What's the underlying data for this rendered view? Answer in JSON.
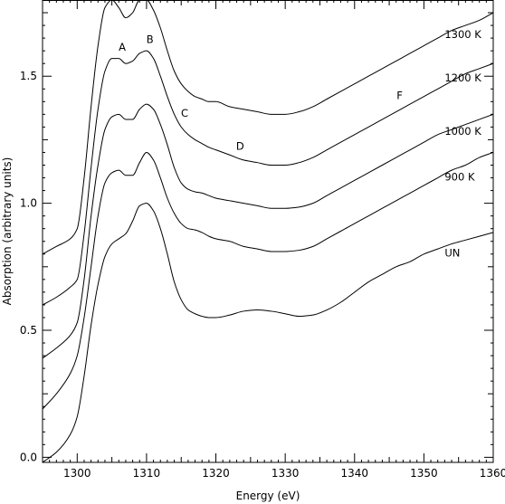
{
  "chart_data": {
    "type": "line",
    "title": "",
    "xlabel": "Energy (eV)",
    "ylabel": "Absorption (arbitrary units)",
    "xlim": [
      1295,
      1360
    ],
    "ylim": [
      -0.02,
      1.8
    ],
    "grid": false,
    "legend": "none",
    "x_major_ticks": [
      1300,
      1310,
      1320,
      1330,
      1340,
      1350,
      1360
    ],
    "x_tick_labels": [
      "1300",
      "1310",
      "1320",
      "1330",
      "1340",
      "1350",
      "1360"
    ],
    "y_major_ticks": [
      0.0,
      0.5,
      1.0,
      1.5
    ],
    "y_tick_labels": [
      "0.0",
      "0.5",
      "1.0",
      "1.5"
    ],
    "series": [
      {
        "name": "UN",
        "x": [
          1295,
          1297,
          1299,
          1300,
          1301,
          1302,
          1303,
          1304,
          1305,
          1306,
          1307,
          1308,
          1309,
          1310,
          1311,
          1312,
          1313,
          1314,
          1315,
          1316,
          1317,
          1318,
          1319,
          1320,
          1322,
          1324,
          1326,
          1328,
          1330,
          1332,
          1334,
          1336,
          1338,
          1340,
          1342,
          1344,
          1346,
          1348,
          1350,
          1352,
          1354,
          1356,
          1358,
          1360
        ],
        "y": [
          -0.02,
          0.02,
          0.09,
          0.16,
          0.32,
          0.52,
          0.68,
          0.79,
          0.84,
          0.86,
          0.88,
          0.93,
          0.99,
          1.0,
          0.97,
          0.9,
          0.8,
          0.69,
          0.62,
          0.58,
          0.565,
          0.555,
          0.55,
          0.55,
          0.56,
          0.575,
          0.58,
          0.575,
          0.565,
          0.555,
          0.56,
          0.58,
          0.61,
          0.65,
          0.69,
          0.72,
          0.75,
          0.77,
          0.8,
          0.82,
          0.84,
          0.855,
          0.87,
          0.885
        ]
      },
      {
        "name": "900 K",
        "x": [
          1295,
          1297,
          1299,
          1300,
          1301,
          1302,
          1303,
          1304,
          1305,
          1306,
          1307,
          1308,
          1309,
          1310,
          1311,
          1312,
          1313,
          1314,
          1315,
          1316,
          1317,
          1318,
          1319,
          1320,
          1322,
          1324,
          1326,
          1328,
          1330,
          1332,
          1334,
          1336,
          1338,
          1340,
          1342,
          1344,
          1346,
          1348,
          1350,
          1352,
          1354,
          1356,
          1358,
          1360
        ],
        "y": [
          0.19,
          0.25,
          0.33,
          0.4,
          0.55,
          0.75,
          0.95,
          1.08,
          1.12,
          1.13,
          1.11,
          1.11,
          1.16,
          1.2,
          1.17,
          1.1,
          1.02,
          0.96,
          0.92,
          0.9,
          0.895,
          0.885,
          0.87,
          0.86,
          0.85,
          0.83,
          0.82,
          0.81,
          0.81,
          0.815,
          0.83,
          0.86,
          0.89,
          0.92,
          0.95,
          0.98,
          1.01,
          1.04,
          1.07,
          1.1,
          1.13,
          1.15,
          1.18,
          1.2
        ]
      },
      {
        "name": "1000 K",
        "x": [
          1295,
          1297,
          1299,
          1300,
          1301,
          1302,
          1303,
          1304,
          1305,
          1306,
          1307,
          1308,
          1309,
          1310,
          1311,
          1312,
          1313,
          1314,
          1315,
          1316,
          1317,
          1318,
          1319,
          1320,
          1322,
          1324,
          1326,
          1328,
          1330,
          1332,
          1334,
          1336,
          1338,
          1340,
          1342,
          1344,
          1346,
          1348,
          1350,
          1352,
          1354,
          1356,
          1358,
          1360
        ],
        "y": [
          0.39,
          0.43,
          0.48,
          0.53,
          0.7,
          0.95,
          1.15,
          1.29,
          1.34,
          1.35,
          1.33,
          1.33,
          1.37,
          1.39,
          1.37,
          1.31,
          1.23,
          1.14,
          1.08,
          1.055,
          1.045,
          1.04,
          1.03,
          1.02,
          1.01,
          1.0,
          0.99,
          0.98,
          0.98,
          0.985,
          1.0,
          1.03,
          1.06,
          1.09,
          1.12,
          1.15,
          1.18,
          1.21,
          1.24,
          1.27,
          1.29,
          1.31,
          1.33,
          1.35
        ]
      },
      {
        "name": "1200 K",
        "x": [
          1295,
          1297,
          1299,
          1300,
          1301,
          1302,
          1303,
          1304,
          1305,
          1306,
          1307,
          1308,
          1309,
          1310,
          1311,
          1312,
          1313,
          1314,
          1315,
          1316,
          1317,
          1318,
          1319,
          1320,
          1322,
          1324,
          1326,
          1328,
          1330,
          1332,
          1334,
          1336,
          1338,
          1340,
          1342,
          1344,
          1346,
          1348,
          1350,
          1352,
          1354,
          1356,
          1358,
          1360
        ],
        "y": [
          0.6,
          0.63,
          0.67,
          0.7,
          0.88,
          1.14,
          1.37,
          1.52,
          1.57,
          1.57,
          1.55,
          1.56,
          1.59,
          1.6,
          1.57,
          1.5,
          1.42,
          1.35,
          1.3,
          1.27,
          1.25,
          1.235,
          1.22,
          1.21,
          1.19,
          1.17,
          1.16,
          1.15,
          1.15,
          1.16,
          1.18,
          1.21,
          1.24,
          1.27,
          1.3,
          1.33,
          1.36,
          1.39,
          1.42,
          1.45,
          1.48,
          1.51,
          1.53,
          1.55
        ]
      },
      {
        "name": "1300 K",
        "x": [
          1295,
          1297,
          1299,
          1300,
          1301,
          1302,
          1303,
          1304,
          1305,
          1306,
          1307,
          1308,
          1309,
          1310,
          1311,
          1312,
          1313,
          1314,
          1315,
          1316,
          1317,
          1318,
          1319,
          1320,
          1322,
          1324,
          1326,
          1328,
          1330,
          1332,
          1334,
          1336,
          1338,
          1340,
          1342,
          1344,
          1346,
          1348,
          1350,
          1352,
          1354,
          1356,
          1358,
          1360
        ],
        "y": [
          0.8,
          0.83,
          0.86,
          0.9,
          1.1,
          1.38,
          1.62,
          1.77,
          1.8,
          1.77,
          1.73,
          1.75,
          1.8,
          1.8,
          1.76,
          1.69,
          1.6,
          1.52,
          1.47,
          1.44,
          1.42,
          1.41,
          1.4,
          1.4,
          1.38,
          1.37,
          1.36,
          1.35,
          1.35,
          1.36,
          1.38,
          1.41,
          1.44,
          1.47,
          1.5,
          1.53,
          1.56,
          1.59,
          1.62,
          1.65,
          1.68,
          1.7,
          1.72,
          1.75
        ]
      }
    ],
    "series_labels": [
      {
        "text": "UN",
        "x": 1353,
        "y": 0.79
      },
      {
        "text": "900 K",
        "x": 1353,
        "y": 1.09
      },
      {
        "text": "1000 K",
        "x": 1353,
        "y": 1.27
      },
      {
        "text": "1200 K",
        "x": 1353,
        "y": 1.48
      },
      {
        "text": "1300 K",
        "x": 1353,
        "y": 1.65
      }
    ],
    "annotations": [
      {
        "text": "A",
        "x": 1306.5,
        "y": 1.6
      },
      {
        "text": "B",
        "x": 1310.5,
        "y": 1.63
      },
      {
        "text": "C",
        "x": 1315.5,
        "y": 1.34
      },
      {
        "text": "D",
        "x": 1323.5,
        "y": 1.21
      },
      {
        "text": "F",
        "x": 1346.5,
        "y": 1.41
      }
    ]
  }
}
